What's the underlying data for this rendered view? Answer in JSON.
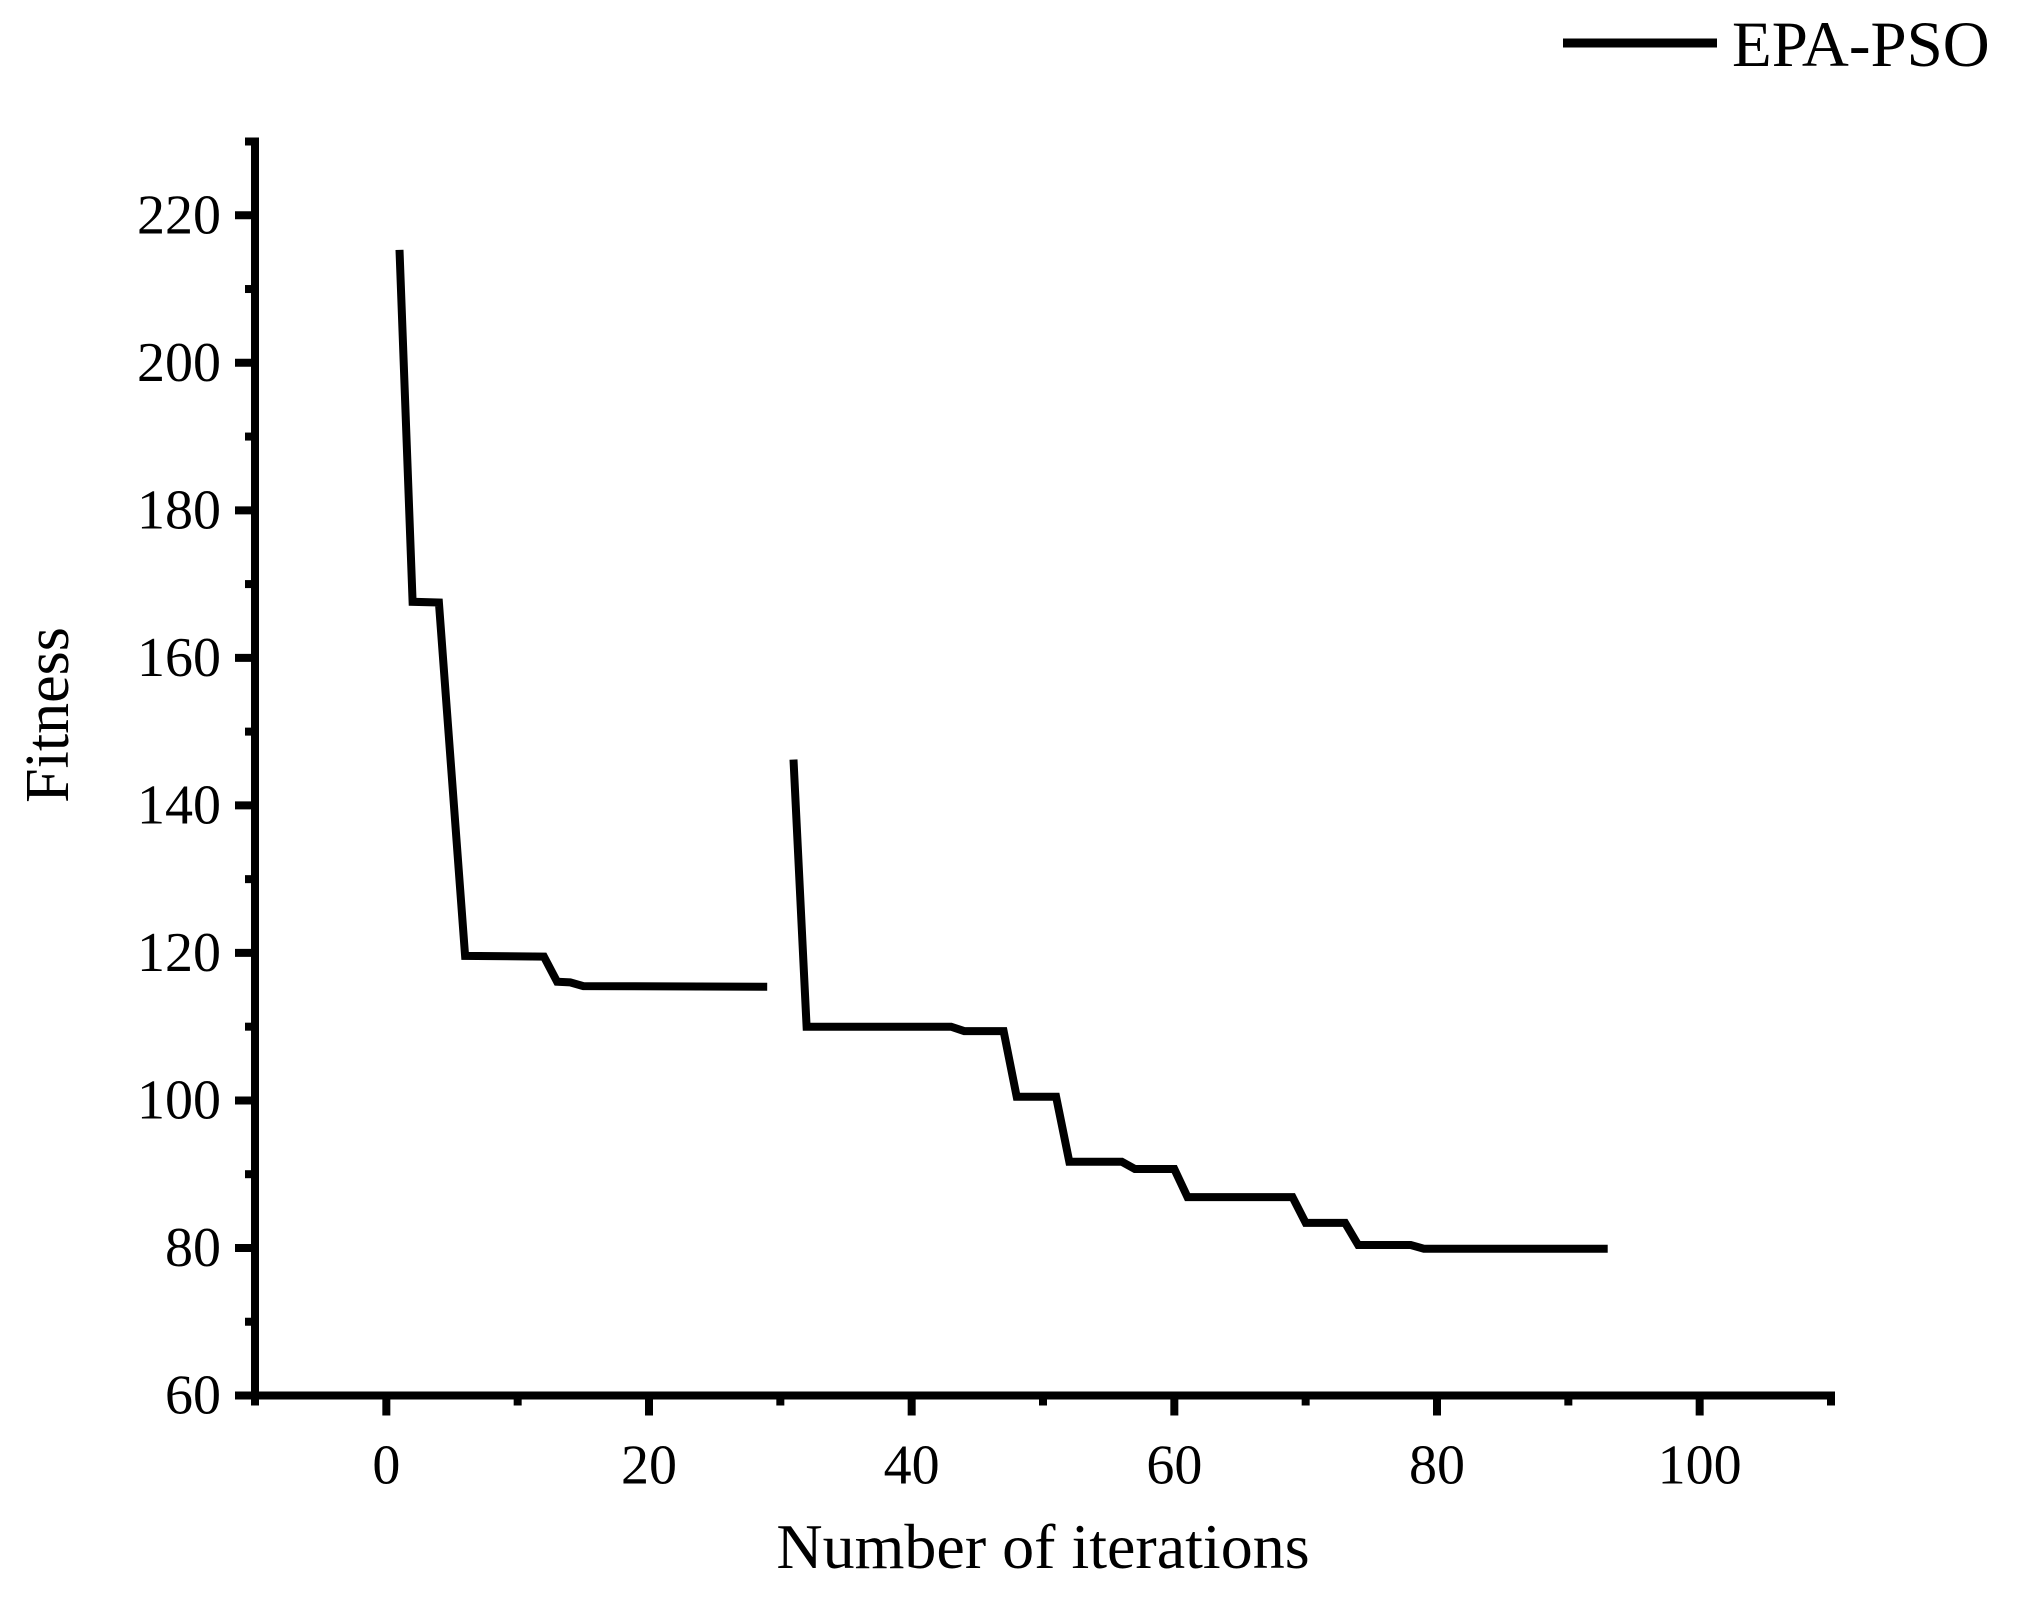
{
  "colors": {
    "background": "#ffffff",
    "foreground": "#000000",
    "series": "#000000"
  },
  "legend": {
    "label": "EPA-PSO",
    "swatch": "line",
    "position": "top-right"
  },
  "axes": {
    "x": {
      "label": "Number of iterations",
      "range": [
        -10,
        110
      ],
      "major_ticks": [
        0,
        20,
        40,
        60,
        80,
        100
      ],
      "minor_ticks": [
        -10,
        10,
        30,
        50,
        70,
        90,
        110
      ]
    },
    "y": {
      "label": "Fitness",
      "range": [
        60,
        230
      ],
      "major_ticks": [
        60,
        80,
        100,
        120,
        140,
        160,
        180,
        200,
        220
      ],
      "minor_ticks": [
        70,
        90,
        110,
        130,
        150,
        170,
        190,
        210,
        230
      ]
    }
  },
  "chart_data": {
    "type": "line",
    "title": "",
    "xlabel": "Number of iterations",
    "ylabel": "Fitness",
    "xlim": [
      -10,
      110
    ],
    "ylim": [
      60,
      230
    ],
    "grid": false,
    "legend_position": "top-right",
    "series": [
      {
        "name": "EPA-PSO",
        "color": "#000000",
        "line_width": 8,
        "segments": [
          [
            [
              1,
              215.3
            ],
            [
              2,
              167.6
            ],
            [
              4,
              167.5
            ],
            [
              6,
              119.6
            ],
            [
              12,
              119.5
            ],
            [
              13,
              116.1
            ],
            [
              14,
              116.0
            ],
            [
              15,
              115.5
            ],
            [
              29,
              115.4
            ]
          ],
          [
            [
              31,
              146.2
            ],
            [
              32,
              110.0
            ],
            [
              43,
              110.0
            ],
            [
              44,
              109.4
            ],
            [
              47,
              109.4
            ],
            [
              48,
              100.5
            ],
            [
              51,
              100.5
            ],
            [
              52,
              91.7
            ],
            [
              56,
              91.7
            ],
            [
              57,
              90.7
            ],
            [
              60,
              90.7
            ],
            [
              61,
              86.9
            ],
            [
              69,
              86.9
            ],
            [
              70,
              83.4
            ],
            [
              73,
              83.4
            ],
            [
              74,
              80.4
            ],
            [
              78,
              80.4
            ],
            [
              79,
              79.9
            ],
            [
              93,
              79.9
            ]
          ]
        ]
      }
    ]
  }
}
